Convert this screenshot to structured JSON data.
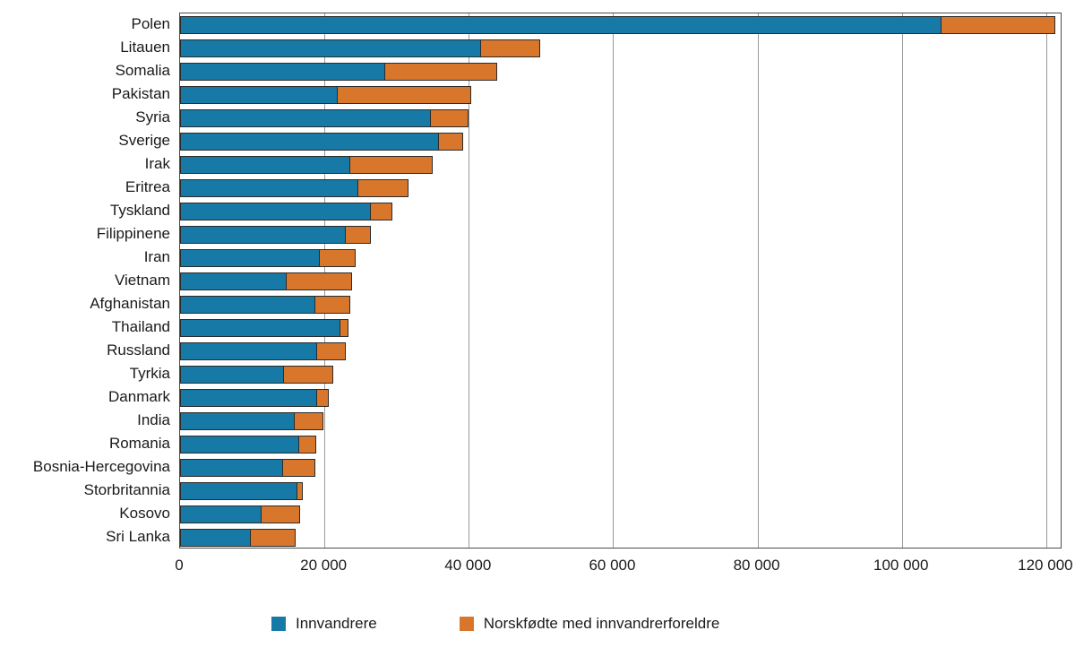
{
  "chart_data": {
    "type": "bar",
    "orientation": "horizontal",
    "stacked": true,
    "title": "",
    "xlabel": "",
    "ylabel": "",
    "grid": "vertical",
    "legend_position": "bottom",
    "xlim": [
      0,
      122000
    ],
    "x_ticks": [
      0,
      20000,
      40000,
      60000,
      80000,
      100000,
      120000
    ],
    "x_tick_labels": [
      "0",
      "20 000",
      "40 000",
      "60 000",
      "80 000",
      "100 000",
      "120 000"
    ],
    "categories": [
      "Polen",
      "Litauen",
      "Somalia",
      "Pakistan",
      "Syria",
      "Sverige",
      "Irak",
      "Eritrea",
      "Tyskland",
      "Filippinene",
      "Iran",
      "Vietnam",
      "Afghanistan",
      "Thailand",
      "Russland",
      "Tyrkia",
      "Danmark",
      "India",
      "Romania",
      "Bosnia-Hercegovina",
      "Storbritannia",
      "Kosovo",
      "Sri Lanka"
    ],
    "series": [
      {
        "name": "Innvandrere",
        "color": "#1779a5",
        "values": [
          105500,
          41700,
          28400,
          21900,
          34700,
          35900,
          23600,
          24700,
          26400,
          23000,
          19300,
          14800,
          18700,
          22200,
          19000,
          14400,
          19000,
          15900,
          16500,
          14300,
          16300,
          11300,
          9800
        ]
      },
      {
        "name": "Norskfødte med innvandrerforeldre",
        "color": "#d8772b",
        "values": [
          15900,
          8300,
          15700,
          18600,
          5400,
          3500,
          11500,
          7100,
          3200,
          3500,
          5100,
          9200,
          5000,
          1300,
          4100,
          7000,
          1700,
          4100,
          2500,
          4600,
          800,
          5500,
          6300
        ]
      }
    ]
  },
  "legend": {
    "items": [
      {
        "label": "Innvandrere"
      },
      {
        "label": "Norskfødte med innvandrerforeldre"
      }
    ]
  }
}
